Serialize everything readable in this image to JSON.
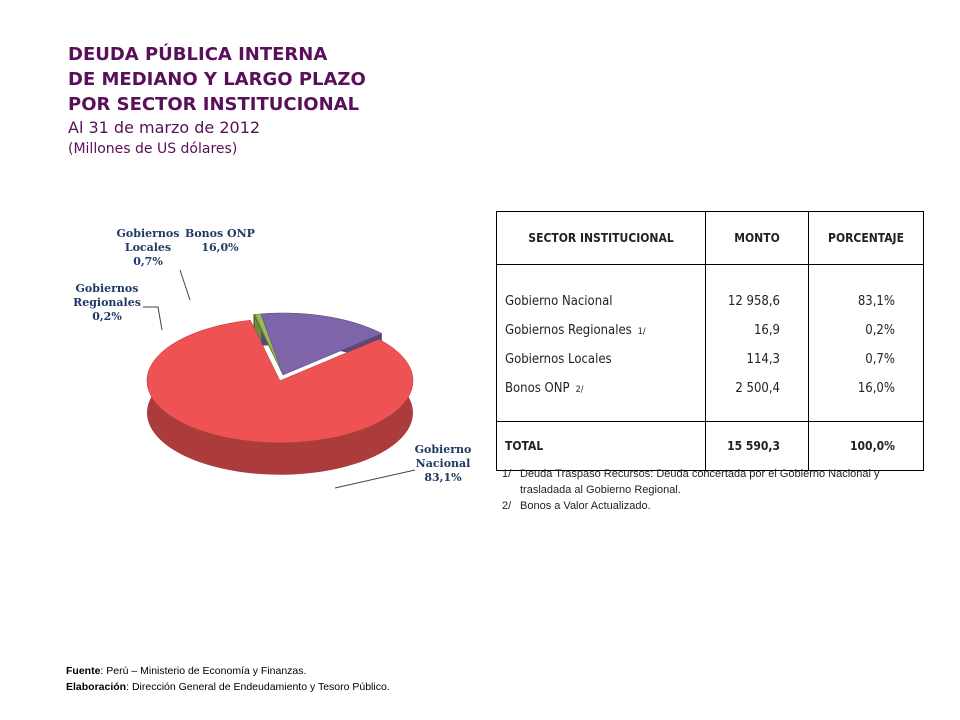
{
  "header": {
    "title": [
      "DEUDA PÚBLICA INTERNA",
      "DE MEDIANO Y LARGO PLAZO",
      "POR SECTOR INSTITUCIONAL"
    ],
    "date": "Al 31 de marzo de 2012",
    "units": "(Millones de US dólares)"
  },
  "chart_data": {
    "type": "pie",
    "categories": [
      "Gobierno Nacional",
      "Gobiernos Regionales",
      "Gobiernos Locales",
      "Bonos ONP"
    ],
    "values": [
      83.1,
      0.2,
      0.7,
      16.0
    ],
    "value_labels": [
      "83,1%",
      "0,2%",
      "0,7%",
      "16,0%"
    ],
    "colors": [
      "#ef5252",
      "#6b8e23",
      "#9bbb59",
      "#7e64a8"
    ]
  },
  "table": {
    "headers": [
      "SECTOR INSTITUCIONAL",
      "MONTO",
      "PORCENTAJE"
    ],
    "rows": [
      {
        "sector": "Gobierno Nacional",
        "monto": "12 958,6",
        "porcentaje": "83,1%"
      },
      {
        "sector": "Gobiernos Regionales",
        "ref": "1/",
        "monto": "16,9",
        "porcentaje": "0,2%"
      },
      {
        "sector": "Gobiernos Locales",
        "monto": "114,3",
        "porcentaje": "0,7%"
      },
      {
        "sector": "Bonos ONP",
        "ref": "2/",
        "monto": "2 500,4",
        "porcentaje": "16,0%"
      }
    ],
    "total": {
      "sector": "TOTAL",
      "monto": "15 590,3",
      "porcentaje": "100,0%"
    }
  },
  "notes": [
    {
      "mark": "1/",
      "text": "Deuda Traspaso Recursos: Deuda concertada por el Gobierno Nacional y  trasladada al Gobierno Regional."
    },
    {
      "mark": "2/",
      "text": "Bonos a Valor Actualizado."
    }
  ],
  "footer": {
    "source_label": "Fuente",
    "source": ": Perú – Ministerio de Economía y Finanzas.",
    "made_label": "Elaboración",
    "made": ":  Dirección General de Endeudamiento y Tesoro Público."
  }
}
